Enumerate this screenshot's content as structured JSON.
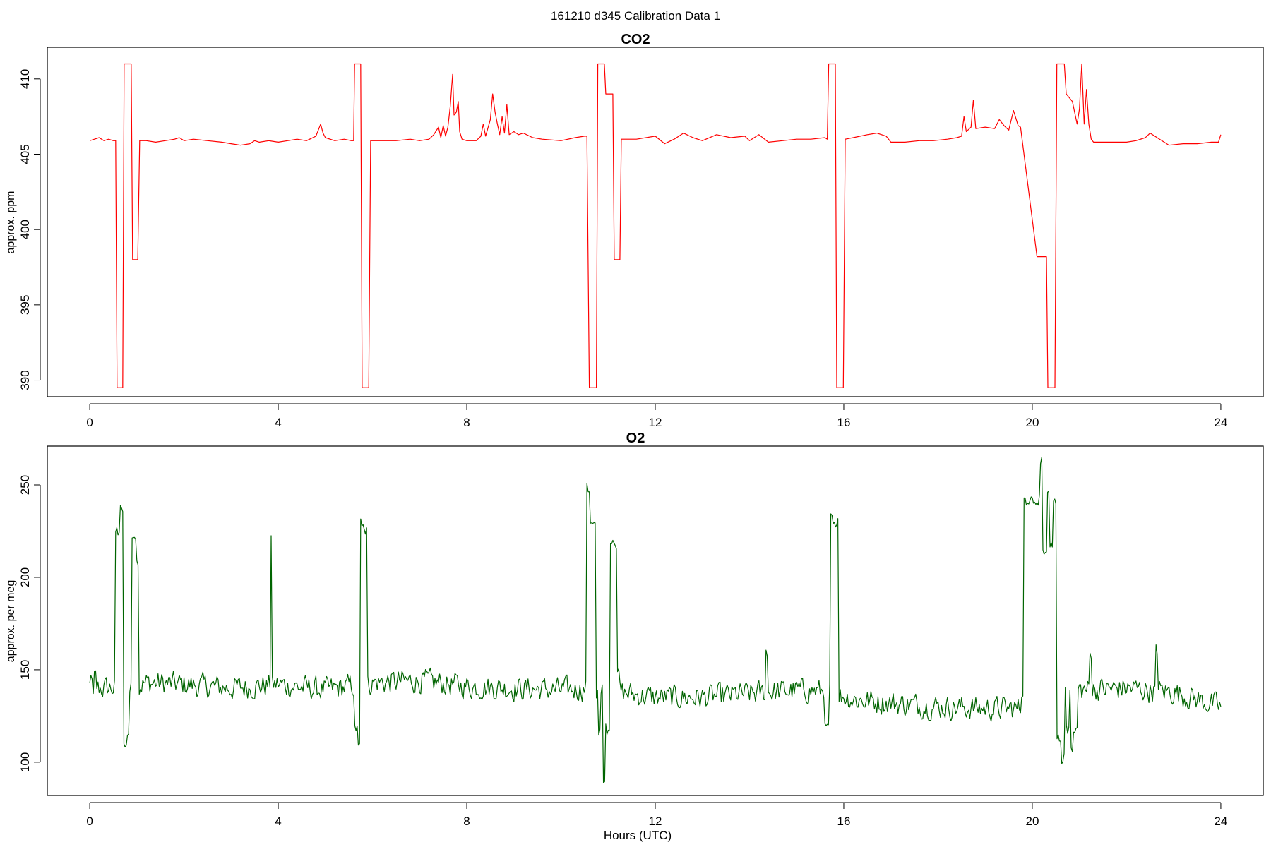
{
  "figure": {
    "title": "161210   d345   Calibration Data 1"
  },
  "chart_data": [
    {
      "type": "line",
      "title": "CO2",
      "xlabel": "",
      "ylabel": "approx. ppm",
      "xlim": [
        -0.9,
        24.9
      ],
      "ylim": [
        388.9,
        412.1
      ],
      "x_ticks": [
        0,
        4,
        8,
        12,
        16,
        20,
        24
      ],
      "y_ticks": [
        390,
        395,
        400,
        405,
        410
      ],
      "grid": false,
      "legend": "none",
      "series": [
        {
          "color": "#ff0000",
          "points": [
            [
              0.0,
              405.9
            ],
            [
              0.1,
              406.0
            ],
            [
              0.2,
              406.1
            ],
            [
              0.3,
              405.9
            ],
            [
              0.4,
              406.0
            ],
            [
              0.5,
              405.9
            ],
            [
              0.55,
              405.9
            ],
            [
              0.58,
              389.5
            ],
            [
              0.7,
              389.5
            ],
            [
              0.73,
              411.0
            ],
            [
              0.88,
              411.0
            ],
            [
              0.91,
              398.0
            ],
            [
              1.02,
              398.0
            ],
            [
              1.06,
              405.9
            ],
            [
              1.2,
              405.9
            ],
            [
              1.4,
              405.8
            ],
            [
              1.6,
              405.9
            ],
            [
              1.8,
              406.0
            ],
            [
              1.9,
              406.1
            ],
            [
              2.0,
              405.9
            ],
            [
              2.2,
              406.0
            ],
            [
              2.5,
              405.9
            ],
            [
              2.8,
              405.8
            ],
            [
              3.0,
              405.7
            ],
            [
              3.2,
              405.6
            ],
            [
              3.4,
              405.7
            ],
            [
              3.5,
              405.9
            ],
            [
              3.6,
              405.8
            ],
            [
              3.8,
              405.9
            ],
            [
              4.0,
              405.8
            ],
            [
              4.2,
              405.9
            ],
            [
              4.4,
              406.0
            ],
            [
              4.6,
              405.9
            ],
            [
              4.8,
              406.2
            ],
            [
              4.9,
              407.0
            ],
            [
              4.95,
              406.4
            ],
            [
              5.0,
              406.1
            ],
            [
              5.2,
              405.9
            ],
            [
              5.4,
              406.0
            ],
            [
              5.55,
              405.9
            ],
            [
              5.6,
              405.9
            ],
            [
              5.62,
              411.0
            ],
            [
              5.75,
              411.0
            ],
            [
              5.78,
              389.5
            ],
            [
              5.92,
              389.5
            ],
            [
              5.96,
              405.9
            ],
            [
              6.2,
              405.9
            ],
            [
              6.5,
              405.9
            ],
            [
              6.8,
              406.0
            ],
            [
              7.0,
              405.9
            ],
            [
              7.2,
              406.0
            ],
            [
              7.3,
              406.3
            ],
            [
              7.4,
              406.8
            ],
            [
              7.45,
              406.1
            ],
            [
              7.5,
              406.9
            ],
            [
              7.55,
              406.2
            ],
            [
              7.6,
              406.8
            ],
            [
              7.65,
              408.2
            ],
            [
              7.7,
              410.3
            ],
            [
              7.73,
              407.6
            ],
            [
              7.78,
              407.8
            ],
            [
              7.82,
              408.5
            ],
            [
              7.85,
              406.5
            ],
            [
              7.9,
              406.0
            ],
            [
              8.0,
              405.9
            ],
            [
              8.2,
              405.9
            ],
            [
              8.3,
              406.2
            ],
            [
              8.35,
              407.0
            ],
            [
              8.4,
              406.2
            ],
            [
              8.5,
              407.3
            ],
            [
              8.55,
              409.0
            ],
            [
              8.6,
              407.8
            ],
            [
              8.65,
              407.0
            ],
            [
              8.7,
              406.3
            ],
            [
              8.75,
              407.5
            ],
            [
              8.8,
              406.4
            ],
            [
              8.85,
              408.3
            ],
            [
              8.9,
              406.3
            ],
            [
              9.0,
              406.5
            ],
            [
              9.1,
              406.3
            ],
            [
              9.2,
              406.4
            ],
            [
              9.4,
              406.1
            ],
            [
              9.6,
              406.0
            ],
            [
              10.0,
              405.9
            ],
            [
              10.3,
              406.1
            ],
            [
              10.5,
              406.2
            ],
            [
              10.55,
              406.2
            ],
            [
              10.6,
              389.5
            ],
            [
              10.75,
              389.5
            ],
            [
              10.78,
              411.0
            ],
            [
              10.92,
              411.0
            ],
            [
              10.95,
              409.0
            ],
            [
              11.1,
              409.0
            ],
            [
              11.13,
              398.0
            ],
            [
              11.25,
              398.0
            ],
            [
              11.28,
              406.0
            ],
            [
              11.6,
              406.0
            ],
            [
              12.0,
              406.2
            ],
            [
              12.2,
              405.7
            ],
            [
              12.4,
              406.0
            ],
            [
              12.6,
              406.4
            ],
            [
              12.8,
              406.1
            ],
            [
              13.0,
              405.9
            ],
            [
              13.3,
              406.3
            ],
            [
              13.6,
              406.1
            ],
            [
              13.9,
              406.2
            ],
            [
              14.0,
              405.9
            ],
            [
              14.2,
              406.3
            ],
            [
              14.4,
              405.8
            ],
            [
              14.7,
              405.9
            ],
            [
              15.0,
              406.0
            ],
            [
              15.3,
              406.0
            ],
            [
              15.6,
              406.1
            ],
            [
              15.65,
              406.0
            ],
            [
              15.68,
              411.0
            ],
            [
              15.82,
              411.0
            ],
            [
              15.85,
              389.5
            ],
            [
              15.99,
              389.5
            ],
            [
              16.03,
              406.0
            ],
            [
              16.2,
              406.1
            ],
            [
              16.5,
              406.3
            ],
            [
              16.7,
              406.4
            ],
            [
              16.9,
              406.2
            ],
            [
              17.0,
              405.8
            ],
            [
              17.3,
              405.8
            ],
            [
              17.6,
              405.9
            ],
            [
              17.9,
              405.9
            ],
            [
              18.2,
              406.0
            ],
            [
              18.4,
              406.1
            ],
            [
              18.5,
              406.2
            ],
            [
              18.55,
              407.5
            ],
            [
              18.6,
              406.5
            ],
            [
              18.7,
              406.8
            ],
            [
              18.75,
              408.6
            ],
            [
              18.8,
              406.7
            ],
            [
              19.0,
              406.8
            ],
            [
              19.2,
              406.7
            ],
            [
              19.3,
              407.3
            ],
            [
              19.4,
              406.9
            ],
            [
              19.5,
              406.6
            ],
            [
              19.6,
              407.9
            ],
            [
              19.7,
              406.9
            ],
            [
              19.75,
              406.8
            ],
            [
              20.1,
              398.2
            ],
            [
              20.3,
              398.2
            ],
            [
              20.33,
              389.5
            ],
            [
              20.48,
              389.5
            ],
            [
              20.52,
              411.0
            ],
            [
              20.68,
              411.0
            ],
            [
              20.72,
              409.0
            ],
            [
              20.85,
              408.5
            ],
            [
              20.95,
              407.0
            ],
            [
              21.0,
              408.0
            ],
            [
              21.05,
              411.0
            ],
            [
              21.1,
              407.0
            ],
            [
              21.15,
              409.3
            ],
            [
              21.2,
              407.0
            ],
            [
              21.25,
              406.0
            ],
            [
              21.3,
              405.8
            ],
            [
              21.6,
              405.8
            ],
            [
              22.0,
              405.8
            ],
            [
              22.2,
              405.9
            ],
            [
              22.4,
              406.1
            ],
            [
              22.5,
              406.4
            ],
            [
              22.6,
              406.2
            ],
            [
              22.7,
              406.0
            ],
            [
              22.9,
              405.6
            ],
            [
              23.2,
              405.7
            ],
            [
              23.5,
              405.7
            ],
            [
              23.8,
              405.8
            ],
            [
              23.95,
              405.8
            ],
            [
              24.0,
              406.3
            ]
          ]
        }
      ]
    },
    {
      "type": "line",
      "title": "O2",
      "xlabel": "Hours (UTC)",
      "ylabel": "approx. per meg",
      "xlim": [
        -0.9,
        24.9
      ],
      "ylim": [
        82,
        271
      ],
      "x_ticks": [
        0,
        4,
        8,
        12,
        16,
        20,
        24
      ],
      "y_ticks": [
        100,
        150,
        200,
        250
      ],
      "grid": false,
      "legend": "none",
      "series": [
        {
          "color": "#006400",
          "baseline": [
            [
              0,
              140
            ],
            [
              0.5,
              140
            ],
            [
              1.3,
              143
            ],
            [
              2,
              142
            ],
            [
              3,
              140
            ],
            [
              4,
              142
            ],
            [
              5,
              139
            ],
            [
              6,
              143
            ],
            [
              7,
              144
            ],
            [
              8,
              141
            ],
            [
              9,
              140
            ],
            [
              10,
              139
            ],
            [
              10.6,
              140
            ],
            [
              11.2,
              138
            ],
            [
              12,
              135
            ],
            [
              13,
              135
            ],
            [
              14,
              137
            ],
            [
              15,
              139
            ],
            [
              15.8,
              138
            ],
            [
              16.2,
              134
            ],
            [
              17,
              132
            ],
            [
              18,
              130
            ],
            [
              19,
              129
            ],
            [
              19.7,
              129
            ],
            [
              21,
              139
            ],
            [
              22,
              140
            ],
            [
              23,
              138
            ],
            [
              24,
              130
            ]
          ],
          "noise_amplitude": 9,
          "events": [
            [
              0.0,
              0.05,
              144
            ],
            [
              0.08,
              0.14,
              148
            ],
            [
              0.55,
              0.65,
              225
            ],
            [
              0.65,
              0.72,
              236
            ],
            [
              0.72,
              0.78,
              108
            ],
            [
              0.78,
              0.85,
              114
            ],
            [
              0.9,
              0.98,
              222
            ],
            [
              0.98,
              1.04,
              208
            ],
            [
              3.83,
              3.87,
              222
            ],
            [
              5.62,
              5.68,
              118
            ],
            [
              5.68,
              5.73,
              108
            ],
            [
              5.75,
              5.82,
              230
            ],
            [
              5.82,
              5.9,
              226
            ],
            [
              10.55,
              10.62,
              248
            ],
            [
              10.62,
              10.75,
              228
            ],
            [
              10.78,
              10.85,
              115
            ],
            [
              10.88,
              10.95,
              89
            ],
            [
              10.95,
              11.05,
              118
            ],
            [
              11.05,
              11.18,
              218
            ],
            [
              11.18,
              11.25,
              150
            ],
            [
              14.35,
              14.4,
              160
            ],
            [
              15.6,
              15.68,
              118
            ],
            [
              15.72,
              15.8,
              232
            ],
            [
              15.8,
              15.9,
              230
            ],
            [
              19.75,
              19.8,
              138
            ],
            [
              19.8,
              20.15,
              242
            ],
            [
              20.15,
              20.2,
              262
            ],
            [
              20.22,
              20.3,
              212
            ],
            [
              20.3,
              20.36,
              246
            ],
            [
              20.36,
              20.44,
              216
            ],
            [
              20.44,
              20.5,
              240
            ],
            [
              20.5,
              20.6,
              112
            ],
            [
              20.6,
              20.68,
              102
            ],
            [
              20.7,
              20.78,
              118
            ],
            [
              20.8,
              20.86,
              108
            ],
            [
              20.86,
              20.95,
              118
            ],
            [
              21.2,
              21.25,
              158
            ],
            [
              22.6,
              22.65,
              161
            ]
          ]
        }
      ]
    }
  ]
}
